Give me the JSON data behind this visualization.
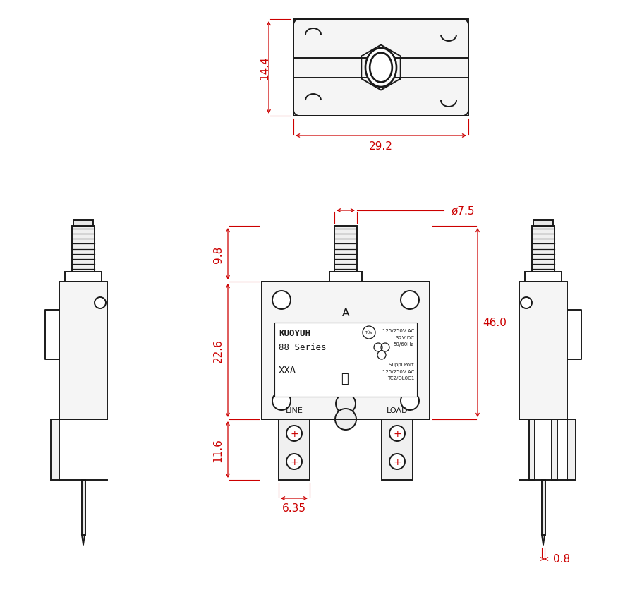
{
  "bg_color": "#ffffff",
  "line_color": "#1a1a1a",
  "dim_color": "#cc0000",
  "dimensions": {
    "top_width": "29.2",
    "top_height": "14.4",
    "button_dia": "ø7.5",
    "main_height_top": "9.8",
    "main_height_mid": "22.6",
    "main_total": "46.0",
    "terminal_height": "11.6",
    "terminal_width": "6.35",
    "side_pin": "0.8"
  },
  "label_A": "A",
  "label_LINE": "LINE",
  "label_LOAD": "LOAD",
  "label_brand": "KUOYUH",
  "label_series": "88 Series",
  "label_model": "XXA",
  "label_spec1": "125/250V AC",
  "label_spec2": "32V DC",
  "label_spec3": "50/60Hz",
  "label_suppl": "Suppl Port",
  "label_suppl2": "125/250V AC",
  "label_suppl3": "TC2/OL0C1"
}
